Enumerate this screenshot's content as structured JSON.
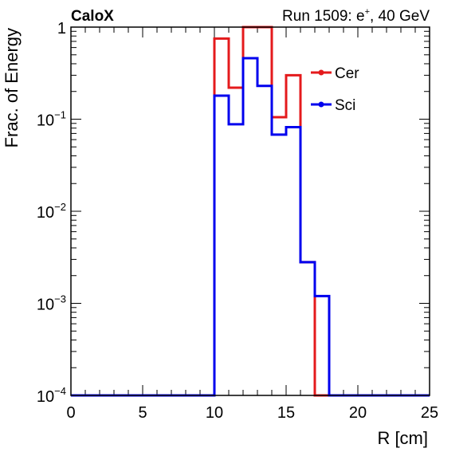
{
  "chart_data": {
    "type": "line",
    "step": true,
    "title_left": "CaloX",
    "title_right": "Run 1509: e",
    "title_right_sup": "+",
    "title_right_tail": ", 40 GeV",
    "xlabel": "R [cm]",
    "ylabel": "Frac. of Energy",
    "xlim": [
      0,
      25
    ],
    "ylim": [
      0.0001,
      1
    ],
    "yscale": "log",
    "x_ticks": [
      {
        "value": 0,
        "label": "0"
      },
      {
        "value": 5,
        "label": "5"
      },
      {
        "value": 10,
        "label": "10"
      },
      {
        "value": 15,
        "label": "15"
      },
      {
        "value": 20,
        "label": "20"
      },
      {
        "value": 25,
        "label": "25"
      }
    ],
    "y_ticks": [
      {
        "value": 1,
        "base": "1",
        "exp": ""
      },
      {
        "value": 0.1,
        "base": "10",
        "exp": "−1"
      },
      {
        "value": 0.01,
        "base": "10",
        "exp": "−2"
      },
      {
        "value": 0.001,
        "base": "10",
        "exp": "−3"
      },
      {
        "value": 0.0001,
        "base": "10",
        "exp": "−4"
      }
    ],
    "bin_edges": [
      0,
      1,
      2,
      3,
      4,
      5,
      6,
      7,
      8,
      9,
      10,
      11,
      12,
      13,
      14,
      15,
      16,
      17,
      18,
      19,
      20,
      21,
      22,
      23,
      24,
      25
    ],
    "legend_position": "top-right",
    "series": [
      {
        "name": "Cer",
        "color": "#e41a1c",
        "values": [
          0,
          0,
          0,
          0,
          0,
          0,
          0,
          0,
          0,
          0,
          0.75,
          0.22,
          1.0,
          1.0,
          0.105,
          0.3,
          0.0028,
          0.0001,
          0,
          0,
          0,
          0,
          0,
          0,
          0
        ]
      },
      {
        "name": "Sci",
        "color": "#0000ee",
        "values": [
          0,
          0,
          0,
          0,
          0,
          0,
          0,
          0,
          0,
          0,
          0.18,
          0.088,
          0.46,
          0.23,
          0.068,
          0.082,
          0.0028,
          0.0012,
          0,
          0,
          0,
          0,
          0,
          0,
          0
        ]
      }
    ]
  }
}
